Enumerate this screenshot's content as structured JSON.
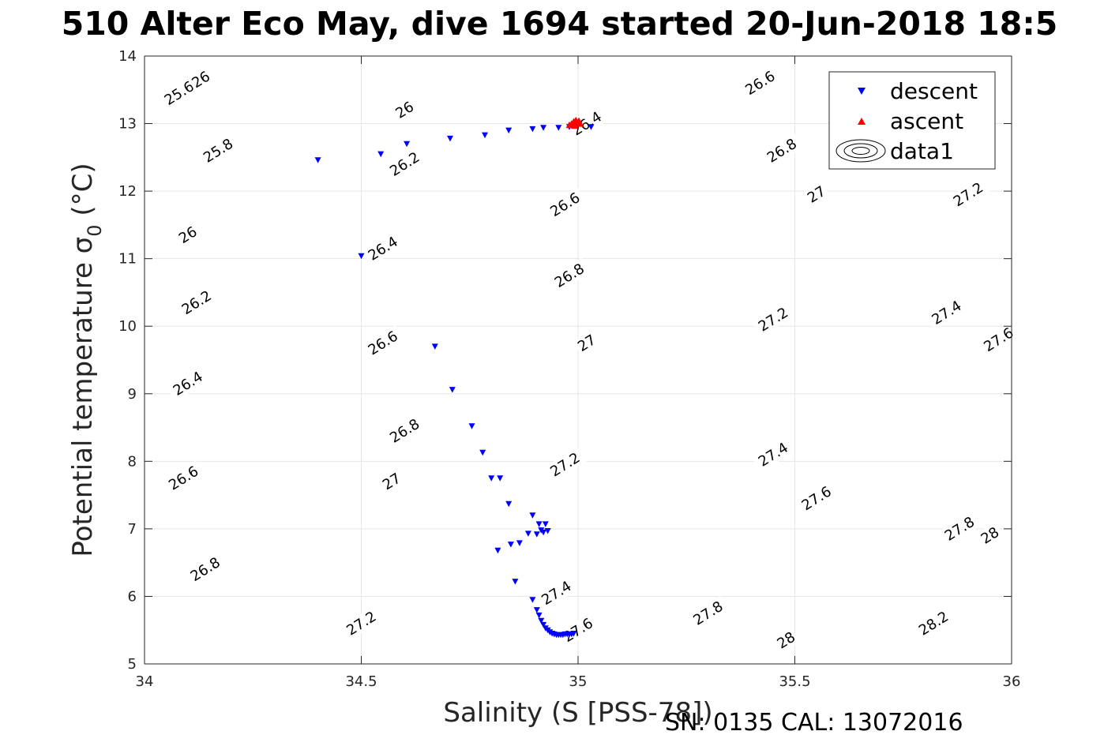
{
  "chart_data": {
    "type": "scatter",
    "title": "510 Alter Eco May, dive 1694 started 20-Jun-2018 18:5",
    "xlabel": "Salinity (S [PSS-78])",
    "ylabel_main": "Potential temperature ",
    "ylabel_symbol": "σ",
    "ylabel_sub": "0",
    "ylabel_unit": " (°C)",
    "xlim": [
      34,
      36
    ],
    "ylim": [
      5,
      14
    ],
    "xticks": [
      34,
      34.5,
      35,
      35.5,
      36
    ],
    "xtick_labels": [
      "34",
      "34.5",
      "35",
      "35.5",
      "36"
    ],
    "yticks": [
      5,
      6,
      7,
      8,
      9,
      10,
      11,
      12,
      13,
      14
    ],
    "ytick_labels": [
      "5",
      "6",
      "7",
      "8",
      "9",
      "10",
      "11",
      "12",
      "13",
      "14"
    ],
    "grid": true,
    "legend_position": "top-right",
    "legend": [
      "descent",
      "ascent",
      "data1"
    ],
    "series": [
      {
        "name": "descent",
        "marker": "triangle-down",
        "color": "#0000ff",
        "x": [
          34.4,
          34.545,
          34.605,
          34.705,
          34.785,
          34.84,
          34.895,
          34.92,
          34.955,
          34.98,
          35.03,
          34.5,
          34.67,
          34.71,
          34.755,
          34.78,
          34.8,
          34.82,
          34.84,
          34.895,
          34.91,
          34.925,
          34.915,
          34.905,
          34.92,
          34.93,
          34.885,
          34.865,
          34.845,
          34.815,
          34.855,
          34.895,
          34.905,
          34.91,
          34.915,
          34.92,
          34.925,
          34.93,
          34.935,
          34.94,
          34.945,
          34.95,
          34.955,
          34.96,
          34.965,
          34.97,
          34.975,
          34.98,
          34.985,
          34.99
        ],
        "y": [
          12.46,
          12.55,
          12.7,
          12.78,
          12.83,
          12.9,
          12.92,
          12.94,
          12.94,
          12.95,
          12.95,
          11.04,
          9.7,
          9.06,
          8.52,
          8.13,
          7.75,
          7.75,
          7.37,
          7.2,
          7.07,
          7.07,
          6.98,
          6.92,
          6.95,
          6.97,
          6.93,
          6.79,
          6.77,
          6.68,
          6.22,
          5.95,
          5.8,
          5.72,
          5.64,
          5.58,
          5.53,
          5.5,
          5.47,
          5.45,
          5.44,
          5.43,
          5.43,
          5.43,
          5.43,
          5.44,
          5.44,
          5.44,
          5.44,
          5.45
        ]
      },
      {
        "name": "ascent",
        "marker": "triangle-up",
        "color": "#ff0000",
        "x": [
          34.985,
          34.99,
          34.995,
          35.0,
          35.005,
          34.98,
          34.992,
          35.002
        ],
        "y": [
          13.0,
          13.03,
          13.05,
          13.02,
          13.0,
          12.98,
          12.97,
          13.04
        ]
      }
    ],
    "contour_levels": [
      "25.6",
      "25.8",
      "26",
      "26.2",
      "26.4",
      "26.6",
      "26.8",
      "27",
      "27.2",
      "27.4",
      "27.6",
      "27.8",
      "28",
      "28.2"
    ],
    "contour_labels": [
      {
        "text": "25.6",
        "x": 34.08,
        "y": 13.45
      },
      {
        "text": "25.8",
        "x": 34.17,
        "y": 12.6
      },
      {
        "text": "26",
        "x": 34.13,
        "y": 13.65
      },
      {
        "text": "26",
        "x": 34.6,
        "y": 13.2
      },
      {
        "text": "26",
        "x": 34.1,
        "y": 11.35
      },
      {
        "text": "26.2",
        "x": 34.12,
        "y": 10.35
      },
      {
        "text": "26.2",
        "x": 34.6,
        "y": 12.4
      },
      {
        "text": "26.4",
        "x": 34.1,
        "y": 9.15
      },
      {
        "text": "26.4",
        "x": 34.55,
        "y": 11.15
      },
      {
        "text": "26.4",
        "x": 35.02,
        "y": 13.0
      },
      {
        "text": "26.6",
        "x": 34.09,
        "y": 7.75
      },
      {
        "text": "26.6",
        "x": 34.55,
        "y": 9.75
      },
      {
        "text": "26.6",
        "x": 34.97,
        "y": 11.8
      },
      {
        "text": "26.6",
        "x": 35.42,
        "y": 13.6
      },
      {
        "text": "26.8",
        "x": 34.14,
        "y": 6.4
      },
      {
        "text": "26.8",
        "x": 34.6,
        "y": 8.45
      },
      {
        "text": "26.8",
        "x": 34.98,
        "y": 10.75
      },
      {
        "text": "26.8",
        "x": 35.47,
        "y": 12.6
      },
      {
        "text": "27",
        "x": 34.57,
        "y": 7.7
      },
      {
        "text": "27",
        "x": 35.02,
        "y": 9.75
      },
      {
        "text": "27",
        "x": 35.55,
        "y": 11.95
      },
      {
        "text": "27.2",
        "x": 34.5,
        "y": 5.6
      },
      {
        "text": "27.2",
        "x": 34.97,
        "y": 7.95
      },
      {
        "text": "27.2",
        "x": 35.45,
        "y": 10.1
      },
      {
        "text": "27.2",
        "x": 35.9,
        "y": 11.95
      },
      {
        "text": "27.4",
        "x": 34.95,
        "y": 6.05
      },
      {
        "text": "27.4",
        "x": 35.45,
        "y": 8.1
      },
      {
        "text": "27.4",
        "x": 35.85,
        "y": 10.2
      },
      {
        "text": "27.6",
        "x": 35.0,
        "y": 5.5
      },
      {
        "text": "27.6",
        "x": 35.55,
        "y": 7.45
      },
      {
        "text": "27.6",
        "x": 35.97,
        "y": 9.8
      },
      {
        "text": "27.8",
        "x": 35.3,
        "y": 5.75
      },
      {
        "text": "27.8",
        "x": 35.88,
        "y": 7.0
      },
      {
        "text": "28",
        "x": 35.48,
        "y": 5.35
      },
      {
        "text": "28",
        "x": 35.95,
        "y": 6.9
      },
      {
        "text": "28.2",
        "x": 35.82,
        "y": 5.6
      }
    ],
    "footer": "SN: 0135  CAL: 13072016"
  }
}
